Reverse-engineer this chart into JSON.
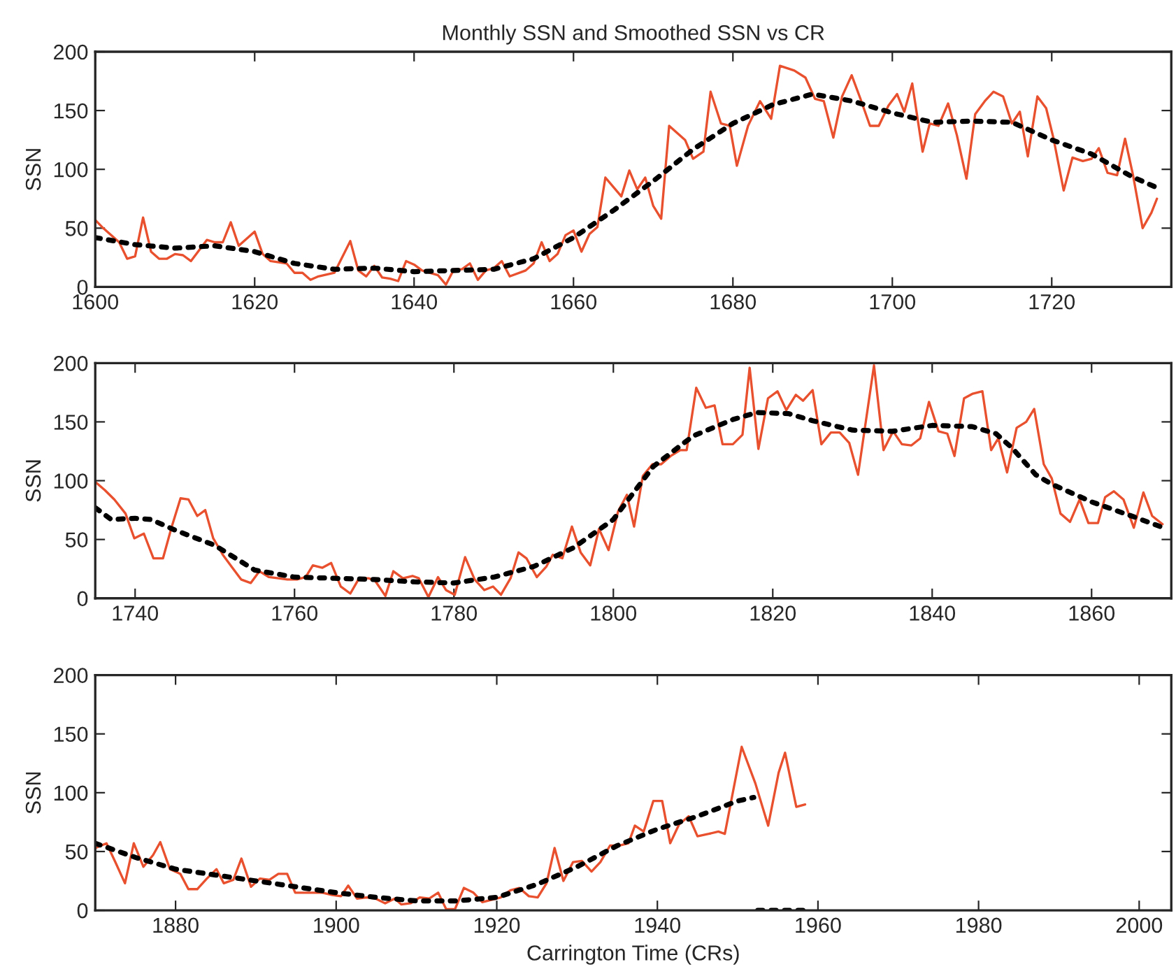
{
  "chart_data": [
    {
      "type": "line",
      "title": "Monthly SSN and Smoothed SSN vs CR",
      "ylabel": "SSN",
      "xlim": [
        1600,
        1735
      ],
      "xticks": [
        1600,
        1620,
        1640,
        1660,
        1680,
        1700,
        1720
      ],
      "ylim": [
        0,
        200
      ],
      "yticks": [
        0,
        50,
        100,
        150,
        200
      ],
      "grid": false,
      "legend": false,
      "series": [
        {
          "color": "#e8502e",
          "line_style": "solid",
          "x": [
            1600,
            1601,
            1603,
            1604,
            1605,
            1606,
            1607,
            1608,
            1609,
            1610,
            1611,
            1612,
            1614,
            1615,
            1616,
            1617,
            1618,
            1620,
            1621,
            1622,
            1624,
            1625,
            1626,
            1627,
            1628,
            1630,
            1632,
            1633,
            1634,
            1635,
            1636,
            1637,
            1638,
            1639,
            1640,
            1641,
            1643,
            1644,
            1645,
            1646,
            1647,
            1648,
            1649,
            1650,
            1651,
            1652,
            1654,
            1655,
            1656,
            1657,
            1658,
            1659,
            1660,
            1661,
            1662,
            1663,
            1664,
            1666,
            1667,
            1668,
            1669,
            1670,
            1671,
            1672,
            1674,
            1675,
            1676.3,
            1677.2,
            1678.5,
            1679.6,
            1680.5,
            1681.9,
            1683.4,
            1684.8,
            1685.9,
            1687.7,
            1689.1,
            1690.3,
            1691.4,
            1692.6,
            1693.7,
            1694.9,
            1696,
            1697.2,
            1698.3,
            1699.5,
            1700.6,
            1701.5,
            1702.5,
            1703.8,
            1704.7,
            1705.8,
            1707,
            1708.1,
            1709.3,
            1710.4,
            1711.6,
            1712.7,
            1713.9,
            1715,
            1716,
            1717,
            1718.2,
            1719.3,
            1720.2,
            1721.5,
            1722.6,
            1723.9,
            1725,
            1725.9,
            1727,
            1728.2,
            1729.2,
            1730.2,
            1731.4,
            1732.5,
            1733.2
          ],
          "values": [
            57,
            50,
            38,
            24,
            26,
            59,
            30,
            24,
            24,
            28,
            27,
            22,
            40,
            38,
            38,
            55,
            35,
            47,
            28,
            22,
            20,
            12,
            12,
            6,
            9,
            12,
            39,
            14,
            9,
            18,
            8,
            7,
            5,
            22,
            19,
            14,
            10,
            2,
            15,
            15,
            20,
            6,
            14,
            16,
            22,
            9,
            14,
            20,
            38,
            22,
            28,
            44,
            48,
            30,
            45,
            51,
            93,
            77,
            99,
            83,
            93,
            69,
            58,
            137,
            125,
            109,
            115,
            166,
            139,
            137,
            103,
            137,
            158,
            143,
            188,
            184,
            178,
            160,
            158,
            127,
            162,
            180,
            160,
            137,
            137,
            154,
            164,
            149,
            173,
            115,
            139,
            137,
            156,
            129,
            92,
            147,
            158,
            166,
            162,
            139,
            149,
            111,
            162,
            152,
            127,
            82,
            110,
            107,
            109,
            118,
            97,
            95,
            126,
            95,
            50,
            63,
            75
          ]
        },
        {
          "color": "#000000",
          "line_style": "dotted",
          "x": [
            1600,
            1605,
            1610,
            1615,
            1620,
            1625,
            1630,
            1635,
            1640,
            1645,
            1650,
            1655,
            1660,
            1665,
            1670,
            1675,
            1680,
            1685,
            1690,
            1695,
            1700,
            1705,
            1710,
            1715,
            1720,
            1725,
            1730,
            1733
          ],
          "values": [
            42,
            36,
            33,
            35,
            30,
            20,
            15,
            16,
            13,
            14,
            15,
            24,
            42,
            65,
            90,
            117,
            139,
            155,
            164,
            158,
            148,
            140,
            141,
            140,
            125,
            113,
            94,
            85
          ]
        }
      ]
    },
    {
      "type": "line",
      "ylabel": "SSN",
      "xlim": [
        1735,
        1870
      ],
      "xticks": [
        1740,
        1760,
        1780,
        1800,
        1820,
        1840,
        1860
      ],
      "ylim": [
        0,
        200
      ],
      "yticks": [
        0,
        50,
        100,
        150,
        200
      ],
      "grid": false,
      "legend": false,
      "series": [
        {
          "color": "#e8502e",
          "line_style": "solid",
          "x": [
            1735,
            1736.2,
            1737.4,
            1738.8,
            1739.9,
            1741.1,
            1742.3,
            1743.5,
            1744.6,
            1745.7,
            1746.7,
            1747.8,
            1748.8,
            1749.8,
            1751,
            1752.2,
            1753.3,
            1754.5,
            1755.6,
            1756.8,
            1758,
            1759.1,
            1760.3,
            1761.4,
            1762.3,
            1763.5,
            1764.6,
            1765.8,
            1767,
            1768.1,
            1769.3,
            1770.1,
            1771.4,
            1772.4,
            1773.6,
            1774.8,
            1775.6,
            1776.8,
            1778,
            1779,
            1780.1,
            1781.4,
            1782.6,
            1783.8,
            1784.9,
            1785.9,
            1787.1,
            1788.1,
            1789.1,
            1790.4,
            1791.6,
            1792.4,
            1793.6,
            1794.8,
            1795.9,
            1797.1,
            1798.2,
            1799.4,
            1800.6,
            1801.7,
            1802.6,
            1803.7,
            1804.9,
            1806,
            1807.2,
            1808.4,
            1809.2,
            1810.4,
            1811.6,
            1812.7,
            1813.7,
            1815,
            1816.2,
            1817.1,
            1818.2,
            1819.4,
            1820.6,
            1821.7,
            1822.9,
            1823.8,
            1825,
            1826.1,
            1827.3,
            1828.4,
            1829.6,
            1830.7,
            1832.7,
            1833.9,
            1835.1,
            1836.2,
            1837.4,
            1838.5,
            1839.6,
            1840.8,
            1841.9,
            1842.8,
            1844,
            1845.1,
            1846.3,
            1847.4,
            1848.3,
            1849.4,
            1850.6,
            1851.8,
            1852.8,
            1854,
            1855,
            1856.1,
            1857.3,
            1858.5,
            1859.6,
            1860.8,
            1861.7,
            1862.8,
            1864,
            1865.3,
            1866.5,
            1867.6,
            1868.9
          ],
          "values": [
            99,
            92,
            84,
            72,
            51,
            55,
            34,
            34,
            61,
            85,
            84,
            70,
            75,
            51,
            37,
            26,
            16,
            13,
            23,
            18,
            17,
            16,
            16,
            18,
            28,
            26,
            30,
            10,
            4,
            17,
            17,
            15,
            2,
            23,
            17,
            19,
            17,
            1,
            18,
            7,
            3,
            35,
            16,
            7,
            10,
            3,
            17,
            39,
            34,
            18,
            27,
            37,
            34,
            61,
            39,
            28,
            59,
            41,
            74,
            88,
            61,
            104,
            114,
            114,
            121,
            126,
            126,
            179,
            162,
            164,
            131,
            131,
            139,
            196,
            127,
            170,
            176,
            160,
            173,
            168,
            177,
            131,
            141,
            141,
            132,
            105,
            198,
            126,
            142,
            131,
            130,
            136,
            167,
            142,
            140,
            121,
            170,
            174,
            176,
            126,
            136,
            107,
            145,
            150,
            161,
            114,
            102,
            72,
            65,
            84,
            64,
            64,
            86,
            91,
            84,
            60,
            90,
            70,
            63
          ]
        },
        {
          "color": "#000000",
          "line_style": "dotted",
          "x": [
            1735,
            1737,
            1740,
            1742,
            1745,
            1750,
            1755,
            1760,
            1765,
            1770,
            1775,
            1780,
            1785,
            1790,
            1795,
            1800,
            1805,
            1810,
            1815,
            1818,
            1822,
            1825,
            1830,
            1835,
            1840,
            1845,
            1848,
            1850,
            1853,
            1855,
            1860,
            1865,
            1869
          ],
          "values": [
            77,
            67,
            68,
            67,
            58,
            45,
            24,
            18,
            17,
            16,
            14,
            13,
            18,
            27,
            43,
            67,
            112,
            138,
            152,
            158,
            157,
            151,
            143,
            142,
            147,
            146,
            140,
            128,
            105,
            97,
            82,
            70,
            60
          ]
        }
      ]
    },
    {
      "type": "line",
      "ylabel": "SSN",
      "xlabel": "Carrington Time (CRs)",
      "xlim": [
        1870,
        2004
      ],
      "xticks": [
        1880,
        1900,
        1920,
        1940,
        1960,
        1980,
        2000
      ],
      "ylim": [
        0,
        200
      ],
      "yticks": [
        0,
        50,
        100,
        150,
        200
      ],
      "grid": false,
      "legend": false,
      "series": [
        {
          "color": "#e8502e",
          "line_style": "solid",
          "x": [
            1870,
            1871.4,
            1872.5,
            1873.7,
            1874.8,
            1876,
            1877.2,
            1878.1,
            1879.3,
            1880.6,
            1881.6,
            1882.7,
            1883.9,
            1885.1,
            1886,
            1887.2,
            1888.2,
            1889.4,
            1890.5,
            1891.7,
            1892.8,
            1893.9,
            1894.9,
            1896,
            1897.2,
            1898.3,
            1899.5,
            1900.6,
            1901.5,
            1902.6,
            1903.8,
            1904.9,
            1906.1,
            1907.3,
            1908.1,
            1909.3,
            1910.4,
            1911.6,
            1912.7,
            1913.7,
            1914.8,
            1915.9,
            1917.1,
            1918.2,
            1919.4,
            1920.5,
            1921.7,
            1922.8,
            1924,
            1925.1,
            1926.2,
            1927.2,
            1928.3,
            1929.5,
            1930.6,
            1931.8,
            1932.9,
            1934.1,
            1935.2,
            1936.4,
            1937.2,
            1938.3,
            1939.5,
            1940.6,
            1941.6,
            1942.7,
            1943.9,
            1945,
            1946.4,
            1947.6,
            1948.4,
            1950.5,
            1952.2,
            1953.8,
            1955.1,
            1955.9,
            1957.3,
            1958.4
          ],
          "values": [
            53,
            57,
            41,
            23,
            57,
            37,
            47,
            58,
            35,
            31,
            18,
            18,
            27,
            35,
            23,
            26,
            44,
            20,
            27,
            26,
            31,
            31,
            15,
            15,
            15,
            15,
            13,
            12,
            21,
            10,
            11,
            10,
            6,
            10,
            5,
            6,
            11,
            10,
            15,
            1,
            1,
            19,
            15,
            7,
            9,
            11,
            17,
            19,
            12,
            11,
            23,
            53,
            25,
            41,
            42,
            33,
            41,
            55,
            55,
            57,
            72,
            67,
            93,
            93,
            57,
            73,
            80,
            63,
            65,
            67,
            65,
            139,
            108,
            72,
            117,
            134,
            88,
            90
          ]
        },
        {
          "color": "#000000",
          "line_style": "dotted",
          "x": [
            1870,
            1875,
            1880,
            1885,
            1890,
            1895,
            1900,
            1905,
            1910,
            1915,
            1920,
            1925,
            1930,
            1935,
            1940,
            1945,
            1950,
            1952
          ],
          "values": [
            57,
            45,
            35,
            30,
            25,
            20,
            15,
            11,
            8,
            8,
            11,
            22,
            37,
            55,
            69,
            80,
            93,
            96
          ]
        },
        {
          "color": "#000000",
          "line_style": "dotted",
          "x": [
            1952.5,
            1954,
            1956,
            1958.5
          ],
          "values": [
            0,
            0,
            0,
            0
          ]
        }
      ]
    }
  ]
}
